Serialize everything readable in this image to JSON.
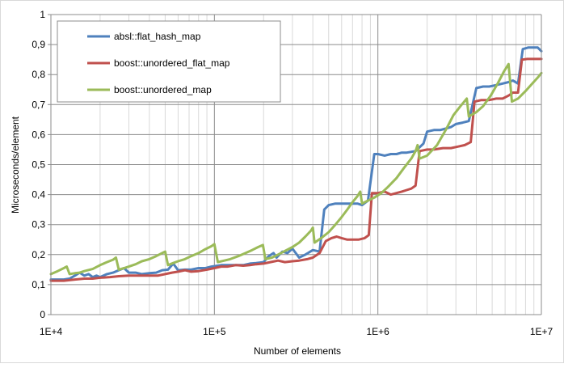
{
  "chart_data": {
    "type": "line",
    "title": "",
    "xlabel": "Number of elements",
    "ylabel": "Microseconds/element",
    "x_scale": "log",
    "xlim": [
      10000,
      10000000
    ],
    "ylim": [
      0,
      1
    ],
    "grid": true,
    "legend_position": "top-left",
    "x_ticks": [
      "1E+4",
      "1E+5",
      "1E+6",
      "1E+7"
    ],
    "y_ticks": [
      "0",
      "0,1",
      "0,2",
      "0,3",
      "0,4",
      "0,5",
      "0,6",
      "0,7",
      "0,8",
      "0,9",
      "1"
    ],
    "series": [
      {
        "name": "absl::flat_hash_map",
        "color": "#4f81bd",
        "points": [
          [
            10000,
            0.117
          ],
          [
            11000,
            0.117
          ],
          [
            12000,
            0.117
          ],
          [
            13000,
            0.12
          ],
          [
            14000,
            0.13
          ],
          [
            15000,
            0.14
          ],
          [
            16000,
            0.13
          ],
          [
            17000,
            0.135
          ],
          [
            18000,
            0.125
          ],
          [
            19000,
            0.13
          ],
          [
            20000,
            0.125
          ],
          [
            22000,
            0.135
          ],
          [
            24000,
            0.14
          ],
          [
            26000,
            0.148
          ],
          [
            28000,
            0.155
          ],
          [
            30000,
            0.14
          ],
          [
            33000,
            0.14
          ],
          [
            36000,
            0.135
          ],
          [
            40000,
            0.138
          ],
          [
            44000,
            0.14
          ],
          [
            48000,
            0.148
          ],
          [
            52000,
            0.15
          ],
          [
            56000,
            0.17
          ],
          [
            60000,
            0.148
          ],
          [
            66000,
            0.15
          ],
          [
            72000,
            0.15
          ],
          [
            80000,
            0.155
          ],
          [
            88000,
            0.155
          ],
          [
            96000,
            0.16
          ],
          [
            110000,
            0.165
          ],
          [
            120000,
            0.165
          ],
          [
            135000,
            0.165
          ],
          [
            150000,
            0.165
          ],
          [
            165000,
            0.17
          ],
          [
            180000,
            0.172
          ],
          [
            200000,
            0.175
          ],
          [
            215000,
            0.195
          ],
          [
            230000,
            0.205
          ],
          [
            240000,
            0.19
          ],
          [
            260000,
            0.21
          ],
          [
            280000,
            0.205
          ],
          [
            300000,
            0.22
          ],
          [
            330000,
            0.19
          ],
          [
            360000,
            0.2
          ],
          [
            400000,
            0.215
          ],
          [
            440000,
            0.21
          ],
          [
            470000,
            0.35
          ],
          [
            500000,
            0.365
          ],
          [
            550000,
            0.37
          ],
          [
            600000,
            0.37
          ],
          [
            650000,
            0.37
          ],
          [
            700000,
            0.37
          ],
          [
            750000,
            0.37
          ],
          [
            800000,
            0.365
          ],
          [
            870000,
            0.38
          ],
          [
            950000,
            0.535
          ],
          [
            1000000,
            0.535
          ],
          [
            1100000,
            0.53
          ],
          [
            1200000,
            0.535
          ],
          [
            1300000,
            0.535
          ],
          [
            1400000,
            0.54
          ],
          [
            1500000,
            0.54
          ],
          [
            1700000,
            0.545
          ],
          [
            1900000,
            0.57
          ],
          [
            2000000,
            0.61
          ],
          [
            2200000,
            0.615
          ],
          [
            2400000,
            0.615
          ],
          [
            2600000,
            0.62
          ],
          [
            2800000,
            0.625
          ],
          [
            3000000,
            0.635
          ],
          [
            3300000,
            0.64
          ],
          [
            3600000,
            0.645
          ],
          [
            4000000,
            0.755
          ],
          [
            4400000,
            0.76
          ],
          [
            4800000,
            0.76
          ],
          [
            5300000,
            0.765
          ],
          [
            5800000,
            0.77
          ],
          [
            6300000,
            0.775
          ],
          [
            6700000,
            0.78
          ],
          [
            7200000,
            0.77
          ],
          [
            7700000,
            0.885
          ],
          [
            8300000,
            0.89
          ],
          [
            9000000,
            0.89
          ],
          [
            9500000,
            0.89
          ],
          [
            10000000,
            0.878
          ]
        ]
      },
      {
        "name": "boost::unordered_flat_map",
        "color": "#c0504d",
        "points": [
          [
            10000,
            0.113
          ],
          [
            12000,
            0.113
          ],
          [
            14000,
            0.117
          ],
          [
            16000,
            0.12
          ],
          [
            18000,
            0.12
          ],
          [
            20000,
            0.123
          ],
          [
            23000,
            0.125
          ],
          [
            26000,
            0.128
          ],
          [
            30000,
            0.13
          ],
          [
            35000,
            0.13
          ],
          [
            40000,
            0.13
          ],
          [
            45000,
            0.13
          ],
          [
            50000,
            0.135
          ],
          [
            55000,
            0.14
          ],
          [
            60000,
            0.143
          ],
          [
            66000,
            0.148
          ],
          [
            72000,
            0.143
          ],
          [
            80000,
            0.145
          ],
          [
            90000,
            0.15
          ],
          [
            100000,
            0.155
          ],
          [
            110000,
            0.16
          ],
          [
            120000,
            0.16
          ],
          [
            135000,
            0.165
          ],
          [
            150000,
            0.163
          ],
          [
            165000,
            0.165
          ],
          [
            180000,
            0.168
          ],
          [
            200000,
            0.17
          ],
          [
            220000,
            0.175
          ],
          [
            245000,
            0.18
          ],
          [
            270000,
            0.175
          ],
          [
            300000,
            0.178
          ],
          [
            330000,
            0.18
          ],
          [
            370000,
            0.185
          ],
          [
            400000,
            0.19
          ],
          [
            440000,
            0.205
          ],
          [
            480000,
            0.245
          ],
          [
            520000,
            0.255
          ],
          [
            560000,
            0.26
          ],
          [
            600000,
            0.255
          ],
          [
            650000,
            0.25
          ],
          [
            700000,
            0.25
          ],
          [
            760000,
            0.25
          ],
          [
            830000,
            0.255
          ],
          [
            880000,
            0.265
          ],
          [
            920000,
            0.405
          ],
          [
            1000000,
            0.405
          ],
          [
            1100000,
            0.41
          ],
          [
            1200000,
            0.4
          ],
          [
            1300000,
            0.405
          ],
          [
            1400000,
            0.41
          ],
          [
            1500000,
            0.415
          ],
          [
            1600000,
            0.42
          ],
          [
            1700000,
            0.43
          ],
          [
            1800000,
            0.545
          ],
          [
            2000000,
            0.55
          ],
          [
            2200000,
            0.55
          ],
          [
            2500000,
            0.555
          ],
          [
            2800000,
            0.555
          ],
          [
            3100000,
            0.56
          ],
          [
            3400000,
            0.565
          ],
          [
            3700000,
            0.575
          ],
          [
            3900000,
            0.71
          ],
          [
            4300000,
            0.715
          ],
          [
            4800000,
            0.715
          ],
          [
            5300000,
            0.72
          ],
          [
            5800000,
            0.72
          ],
          [
            6300000,
            0.73
          ],
          [
            6700000,
            0.74
          ],
          [
            7200000,
            0.74
          ],
          [
            7600000,
            0.85
          ],
          [
            8200000,
            0.852
          ],
          [
            9000000,
            0.852
          ],
          [
            10000000,
            0.852
          ]
        ]
      },
      {
        "name": "boost::unordered_map",
        "color": "#9bbb59",
        "points": [
          [
            10000,
            0.135
          ],
          [
            11000,
            0.145
          ],
          [
            12000,
            0.155
          ],
          [
            12500,
            0.16
          ],
          [
            13000,
            0.135
          ],
          [
            14000,
            0.138
          ],
          [
            15000,
            0.14
          ],
          [
            16000,
            0.145
          ],
          [
            18000,
            0.152
          ],
          [
            20000,
            0.165
          ],
          [
            22000,
            0.175
          ],
          [
            24000,
            0.183
          ],
          [
            25000,
            0.19
          ],
          [
            26000,
            0.15
          ],
          [
            28000,
            0.155
          ],
          [
            30000,
            0.16
          ],
          [
            33000,
            0.168
          ],
          [
            36000,
            0.178
          ],
          [
            40000,
            0.185
          ],
          [
            44000,
            0.195
          ],
          [
            48000,
            0.205
          ],
          [
            50000,
            0.21
          ],
          [
            52000,
            0.165
          ],
          [
            56000,
            0.172
          ],
          [
            60000,
            0.178
          ],
          [
            66000,
            0.185
          ],
          [
            72000,
            0.195
          ],
          [
            80000,
            0.205
          ],
          [
            88000,
            0.218
          ],
          [
            96000,
            0.228
          ],
          [
            100000,
            0.235
          ],
          [
            105000,
            0.175
          ],
          [
            115000,
            0.18
          ],
          [
            125000,
            0.185
          ],
          [
            140000,
            0.195
          ],
          [
            155000,
            0.205
          ],
          [
            170000,
            0.215
          ],
          [
            185000,
            0.225
          ],
          [
            198000,
            0.232
          ],
          [
            205000,
            0.185
          ],
          [
            225000,
            0.19
          ],
          [
            245000,
            0.2
          ],
          [
            270000,
            0.212
          ],
          [
            300000,
            0.225
          ],
          [
            330000,
            0.24
          ],
          [
            360000,
            0.26
          ],
          [
            390000,
            0.28
          ],
          [
            400000,
            0.29
          ],
          [
            410000,
            0.24
          ],
          [
            450000,
            0.255
          ],
          [
            500000,
            0.275
          ],
          [
            550000,
            0.3
          ],
          [
            600000,
            0.325
          ],
          [
            650000,
            0.35
          ],
          [
            700000,
            0.375
          ],
          [
            750000,
            0.395
          ],
          [
            780000,
            0.41
          ],
          [
            800000,
            0.37
          ],
          [
            870000,
            0.38
          ],
          [
            950000,
            0.39
          ],
          [
            1050000,
            0.405
          ],
          [
            1150000,
            0.425
          ],
          [
            1300000,
            0.455
          ],
          [
            1450000,
            0.49
          ],
          [
            1600000,
            0.52
          ],
          [
            1700000,
            0.545
          ],
          [
            1750000,
            0.565
          ],
          [
            1800000,
            0.52
          ],
          [
            2000000,
            0.53
          ],
          [
            2300000,
            0.565
          ],
          [
            2600000,
            0.615
          ],
          [
            2900000,
            0.665
          ],
          [
            3200000,
            0.695
          ],
          [
            3500000,
            0.72
          ],
          [
            3600000,
            0.66
          ],
          [
            4000000,
            0.675
          ],
          [
            4400000,
            0.695
          ],
          [
            4900000,
            0.73
          ],
          [
            5400000,
            0.77
          ],
          [
            5900000,
            0.81
          ],
          [
            6300000,
            0.835
          ],
          [
            6600000,
            0.71
          ],
          [
            7200000,
            0.72
          ],
          [
            8000000,
            0.745
          ],
          [
            8800000,
            0.77
          ],
          [
            9500000,
            0.79
          ],
          [
            10000000,
            0.805
          ]
        ]
      }
    ]
  }
}
